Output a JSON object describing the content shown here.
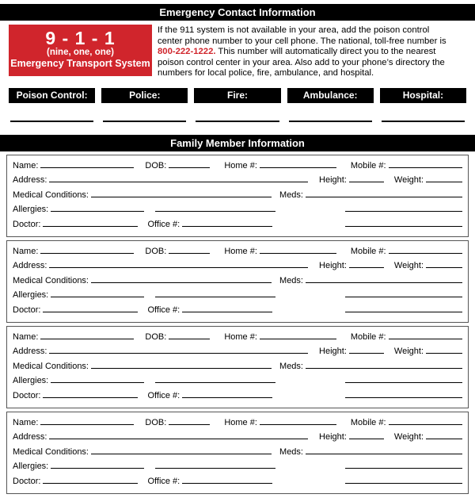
{
  "colors": {
    "accent_red": "#d0252c",
    "bar_background": "#000000",
    "bar_text": "#ffffff"
  },
  "header": {
    "title": "Emergency Contact Information"
  },
  "emergency_info": {
    "code_display": "9 - 1 - 1",
    "code_words": "(nine, one, one)",
    "code_caption": "Emergency Transport System",
    "paragraph_before": "If the 911 system is not available in your area, add the poison control center phone number to your cell phone. The national, toll-free number is ",
    "phone_number": "800-222-1222.",
    "paragraph_after": " This number will automatically direct you to the nearest poison control center in your area. Also add to your phone’s directory the numbers for local police, fire, ambulance, and hospital."
  },
  "contacts": {
    "items": [
      {
        "label": "Poison Control:"
      },
      {
        "label": "Police:"
      },
      {
        "label": "Fire:"
      },
      {
        "label": "Ambulance:"
      },
      {
        "label": "Hospital:"
      }
    ]
  },
  "family_section": {
    "title": "Family Member Information",
    "member_count": 4,
    "form_labels": {
      "name": "Name:",
      "dob": "DOB:",
      "home": "Home #:",
      "mobile": "Mobile #:",
      "address": "Address:",
      "height": "Height:",
      "weight": "Weight:",
      "medical": "Medical Conditions:",
      "meds": "Meds:",
      "allergies": "Allergies:",
      "doctor": "Doctor:",
      "office": "Office #:"
    }
  }
}
